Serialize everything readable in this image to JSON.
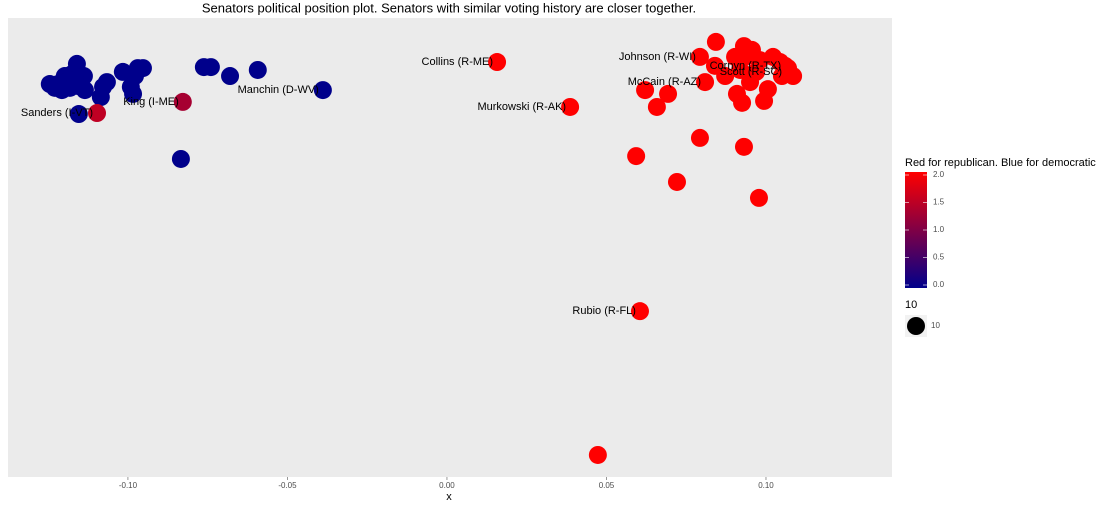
{
  "chart_data": {
    "type": "scatter",
    "title": "Senators political position plot. Senators with similar voting history are closer together.",
    "x_label": "x",
    "xlim": [
      -0.1376,
      0.1395
    ],
    "ylim": [
      -0.1249,
      0.019
    ],
    "xticks": [
      {
        "value": -0.1,
        "label": "-0.10"
      },
      {
        "value": -0.05,
        "label": "-0.05"
      },
      {
        "value": 0,
        "label": "0.00"
      },
      {
        "value": 0.05,
        "label": "0.05"
      },
      {
        "value": 0.1,
        "label": "0.10"
      }
    ],
    "x": [
      -0.116,
      -0.1245,
      -0.1219,
      -0.1198,
      -0.1176,
      -0.1138,
      -0.1207,
      -0.1182,
      -0.1157,
      -0.1135,
      -0.1229,
      -0.1085,
      -0.1078,
      -0.1066,
      -0.1016,
      -0.0978,
      -0.0969,
      -0.0953,
      -0.0991,
      -0.0984,
      -0.1154,
      -0.0834,
      -0.0762,
      -0.074,
      -0.068,
      -0.0593,
      -0.0389,
      -0.1194,
      -0.1166,
      -0.1097,
      -0.0828,
      0.0157,
      0.0386,
      0.0605,
      0.0473,
      0.0593,
      0.0721,
      0.0793,
      0.0931,
      0.0978,
      0.0621,
      0.0693,
      0.0658,
      0.0843,
      0.0793,
      0.0931,
      0.0809,
      0.0872,
      0.0909,
      0.0994,
      0.0925,
      0.1006,
      0.0944,
      0.0981,
      0.1022,
      0.1044,
      0.1069,
      0.1085,
      0.105,
      0.0969,
      0.0919,
      0.106,
      0.1063,
      0.095,
      0.0903,
      0.0956,
      0.084
    ],
    "y": [
      0.0046,
      -0.0017,
      -0.0017,
      0.0008,
      0.0014,
      0.0008,
      -0.0036,
      -0.0029,
      -0.0023,
      -0.0036,
      -0.0029,
      -0.0058,
      -0.0026,
      -0.0011,
      0.0021,
      0.0008,
      0.0033,
      0.0033,
      -0.0026,
      -0.0048,
      -0.0111,
      -0.0252,
      0.0036,
      0.0036,
      0.0008,
      0.0027,
      -0.0036,
      -0.0011,
      -0.0004,
      -0.0108,
      -0.0073,
      0.0052,
      -0.0089,
      -0.0729,
      -0.118,
      -0.0243,
      -0.0324,
      -0.0186,
      -0.0214,
      -0.0374,
      -0.0036,
      -0.0048,
      -0.0089,
      0.0115,
      0.0068,
      0.0102,
      -0.0011,
      0.0008,
      -0.0048,
      -0.007,
      -0.0076,
      -0.0033,
      0.0071,
      0.0058,
      0.0068,
      0.0052,
      0.0033,
      0.0008,
      0.0008,
      0.0021,
      0.0027,
      0.004,
      0.0021,
      -0.0011,
      0.0068,
      0.009,
      0.004
    ],
    "color_values": [
      0,
      0,
      0,
      0,
      0,
      0,
      0,
      0,
      0,
      0,
      0,
      0,
      0,
      0,
      0,
      0,
      0,
      0,
      0,
      0,
      0,
      0,
      0,
      0,
      0,
      0,
      0,
      0,
      0,
      1.5,
      1.3,
      2,
      2,
      2,
      2,
      2,
      2,
      2,
      2,
      2,
      2,
      2,
      2,
      2,
      2,
      2,
      2,
      2,
      2,
      2,
      2,
      2,
      2,
      2,
      2,
      2,
      2,
      2,
      2,
      2,
      2,
      2,
      2,
      2,
      2,
      2,
      2
    ],
    "labels": [
      null,
      null,
      null,
      null,
      null,
      null,
      null,
      null,
      null,
      null,
      null,
      null,
      null,
      null,
      null,
      null,
      null,
      null,
      null,
      null,
      null,
      null,
      null,
      null,
      null,
      null,
      "Manchin (D-WV)",
      null,
      null,
      "Sanders (I-VT)",
      "King (I-ME)",
      "Collins (R-ME)",
      "Murkowski (R-AK)",
      "Rubio (R-FL)",
      null,
      null,
      null,
      null,
      null,
      null,
      null,
      null,
      null,
      null,
      "Johnson (R-WI)",
      null,
      "McCain (R-AZ)",
      null,
      null,
      null,
      null,
      null,
      null,
      null,
      null,
      null,
      null,
      null,
      null,
      null,
      null,
      "Cornyn (R-TX)",
      "Scott (R-SC)",
      null,
      null,
      null,
      null
    ],
    "color_scale": {
      "title": "Red for republican. Blue for democratic",
      "low": "#00008b",
      "high": "#ff0000",
      "lim": [
        0,
        2
      ],
      "ticks": [
        {
          "value": 0,
          "label": "0.0"
        },
        {
          "value": 0.5,
          "label": "0.5"
        },
        {
          "value": 1,
          "label": "1.0"
        },
        {
          "value": 1.5,
          "label": "1.5"
        },
        {
          "value": 2,
          "label": "2.0"
        }
      ]
    },
    "size_legend": {
      "title": "10",
      "values": [
        10
      ]
    },
    "panel_color": "#ebebeb"
  }
}
